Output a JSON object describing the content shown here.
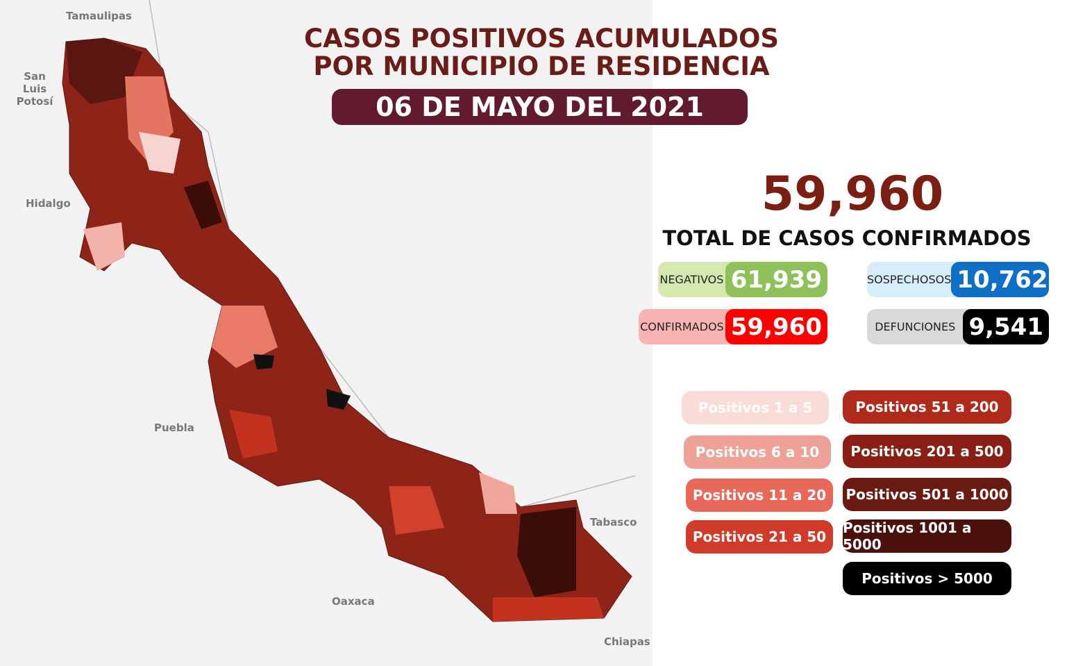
{
  "header": {
    "title_lines": [
      "CASOS POSITIVOS ACUMULADOS",
      "POR MUNICIPIO DE RESIDENCIA"
    ],
    "date": "06 DE MAYO DEL 2021"
  },
  "total": {
    "value": "59,960",
    "label": "TOTAL DE CASOS CONFIRMADOS"
  },
  "stats": [
    {
      "label": "NEGATIVOS",
      "value": "61,939"
    },
    {
      "label": "SOSPECHOSOS",
      "value": "10,762"
    },
    {
      "label": "CONFIRMADOS",
      "value": "59,960"
    },
    {
      "label": "DEFUNCIONES",
      "value": "9,541"
    }
  ],
  "legend": [
    "Positivos 1 a 5",
    "Positivos 6 a 10",
    "Positivos 11 a 20",
    "Positivos 21 a 50",
    "Positivos 51 a 200",
    "Positivos 201 a 500",
    "Positivos 501 a 1000",
    "Positivos 1001 a 5000",
    "Positivos > 5000"
  ],
  "map_labels": [
    "Tamaulipas",
    "San Luis Potosí",
    "Hidalgo",
    "Puebla",
    "Oaxaca",
    "Tabasco",
    "Chiapas"
  ]
}
